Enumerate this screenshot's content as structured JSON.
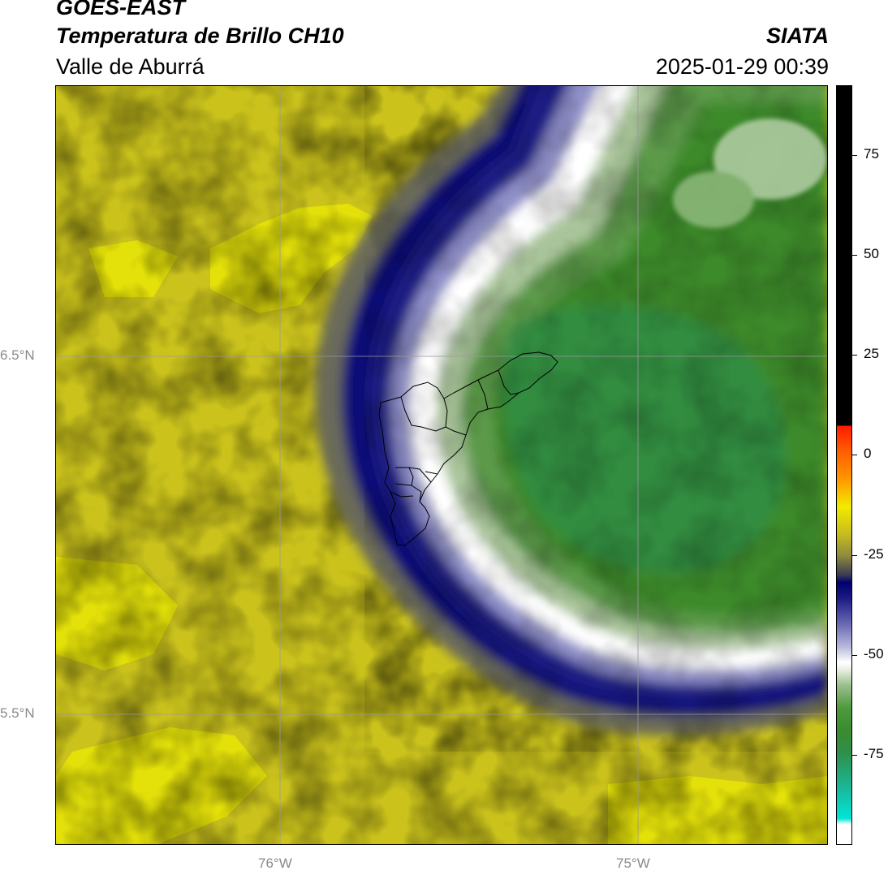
{
  "header": {
    "title_line1": "GOES-EAST",
    "title_line2": "Temperatura de Brillo CH10",
    "region": "Valle de Aburrá",
    "brand": "SIATA",
    "timestamp": "2025-01-29 00:39"
  },
  "map": {
    "lat_labels": [
      "6.5°N",
      "5.5°N"
    ],
    "lon_labels": [
      "76°W",
      "75°W"
    ],
    "gridlines": true,
    "boundary_overlay": "municipal-boundaries"
  },
  "colorbar": {
    "ticks": [
      "75",
      "50",
      "25",
      "0",
      "-25",
      "-50",
      "-75"
    ],
    "colors": {
      "black": "#000000",
      "red": "#ff1a00",
      "orange": "#ff8a00",
      "yellow": "#f2ea00",
      "olive": "#8e8a3e",
      "navy": "#00006e",
      "lavender": "#b9b9dc",
      "white": "#ffffff",
      "green": "#3a8c2e",
      "cyan": "#00e5d6"
    }
  }
}
